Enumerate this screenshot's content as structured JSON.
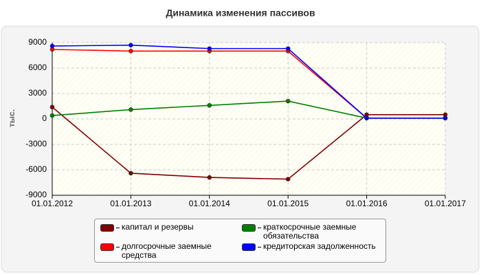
{
  "chart_data": {
    "type": "line",
    "title": "Динамика изменения пассивов",
    "y_label": "тыс.",
    "categories": [
      "01.01.2012",
      "01.01.2013",
      "01.01.2014",
      "01.01.2015",
      "01.01.2016",
      "01.01.2017"
    ],
    "series": [
      {
        "name": "капитал и резервы",
        "color": "#800000",
        "values": [
          1400,
          -6400,
          -6900,
          -7100,
          500,
          500
        ]
      },
      {
        "name": "долгосрочные заемные средства",
        "color": "#ff0000",
        "values": [
          8200,
          8000,
          8000,
          8000,
          100,
          100
        ]
      },
      {
        "name": "краткосрочные заемные обязательства",
        "color": "#008000",
        "values": [
          400,
          1100,
          1600,
          2100,
          100,
          100
        ]
      },
      {
        "name": "кредиторская задолженность",
        "color": "#0000ff",
        "values": [
          8600,
          8700,
          8300,
          8300,
          100,
          100
        ]
      }
    ],
    "ylim": [
      -9000,
      9000
    ],
    "yticks": [
      -9000,
      -6000,
      -3000,
      0,
      3000,
      6000,
      9000
    ],
    "grid": true
  }
}
